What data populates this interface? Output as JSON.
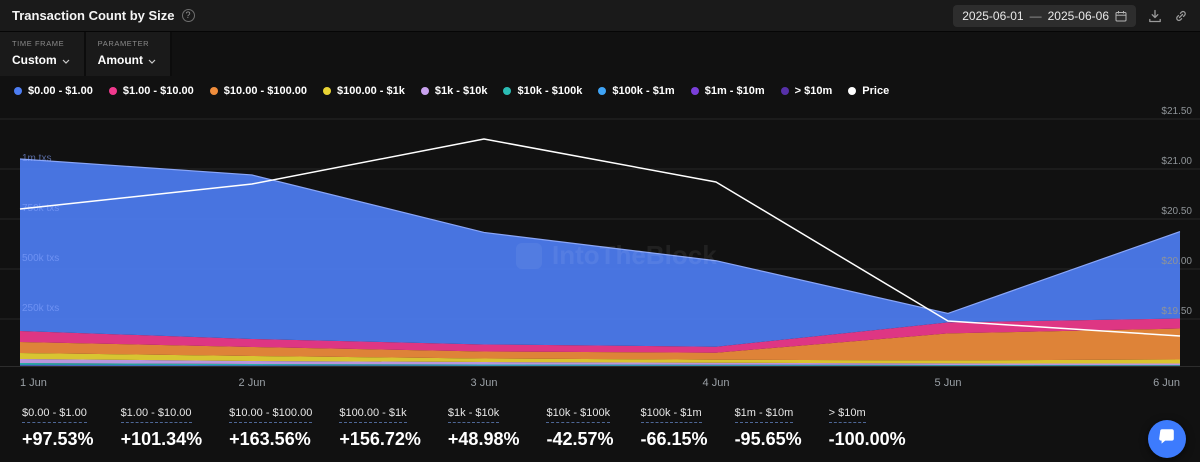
{
  "header": {
    "title": "Transaction Count by Size",
    "info_tooltip": "?",
    "date_range": {
      "start": "2025-06-01",
      "separator": "—",
      "end": "2025-06-06"
    }
  },
  "controls": {
    "time_frame": {
      "label": "TIME FRAME",
      "value": "Custom"
    },
    "parameter": {
      "label": "PARAMETER",
      "value": "Amount"
    }
  },
  "legend": {
    "items": [
      {
        "label": "$0.00 - $1.00",
        "color": "#4d7df2"
      },
      {
        "label": "$1.00 - $10.00",
        "color": "#f0398d"
      },
      {
        "label": "$10.00 - $100.00",
        "color": "#f08d3c"
      },
      {
        "label": "$100.00 - $1k",
        "color": "#e9d434"
      },
      {
        "label": "$1k - $10k",
        "color": "#c9a2ef"
      },
      {
        "label": "$10k - $100k",
        "color": "#2bbcb4"
      },
      {
        "label": "$100k - $1m",
        "color": "#3fa4f6"
      },
      {
        "label": "$1m - $10m",
        "color": "#7a3fd9"
      },
      {
        "label": "> $10m",
        "color": "#5630a8"
      },
      {
        "label": "Price",
        "color": "#ffffff"
      }
    ]
  },
  "chart_data": {
    "type": "area",
    "stacked": true,
    "x": [
      "1 Jun",
      "2 Jun",
      "3 Jun",
      "4 Jun",
      "5 Jun",
      "6 Jun"
    ],
    "series": [
      {
        "name": "$0.00 - $1.00",
        "color": "#4d7df2",
        "values": [
          860000,
          820000,
          560000,
          430000,
          45000,
          435000
        ]
      },
      {
        "name": "$1.00 - $10.00",
        "color": "#f0398d",
        "values": [
          55000,
          40000,
          35000,
          30000,
          55000,
          50000
        ]
      },
      {
        "name": "$10.00 - $100.00",
        "color": "#f08d3c",
        "values": [
          55000,
          45000,
          35000,
          35000,
          135000,
          155000
        ]
      },
      {
        "name": "$100.00 - $1k",
        "color": "#e9d434",
        "values": [
          30000,
          25000,
          18000,
          15000,
          15000,
          20000
        ]
      },
      {
        "name": "$1k - $10k",
        "color": "#c9a2ef",
        "values": [
          20000,
          15000,
          12000,
          10000,
          8000,
          8000
        ]
      },
      {
        "name": "$10k - $100k",
        "color": "#2bbcb4",
        "values": [
          8000,
          6000,
          5000,
          4000,
          3000,
          3000
        ]
      },
      {
        "name": "$100k - $1m",
        "color": "#3fa4f6",
        "values": [
          4000,
          3000,
          2000,
          1800,
          1500,
          1200
        ]
      },
      {
        "name": "$1m - $10m",
        "color": "#7a3fd9",
        "values": [
          2000,
          1000,
          700,
          500,
          400,
          100
        ]
      },
      {
        "name": "> $10m",
        "color": "#5630a8",
        "values": [
          1000,
          200,
          100,
          100,
          100,
          0
        ]
      }
    ],
    "price": {
      "name": "Price",
      "color": "#ffffff",
      "values": [
        20.6,
        20.85,
        21.3,
        20.87,
        19.48,
        19.33
      ]
    },
    "left_axis": {
      "unit": "txs",
      "ticks": [
        {
          "label": "1m txs",
          "value": 1000000
        },
        {
          "label": "750k txs",
          "value": 750000
        },
        {
          "label": "500k txs",
          "value": 500000
        },
        {
          "label": "250k txs",
          "value": 250000
        }
      ]
    },
    "right_axis": {
      "unit": "$",
      "ticks": [
        {
          "label": "$21.50",
          "value": 21.5
        },
        {
          "label": "$21.00",
          "value": 21.0
        },
        {
          "label": "$20.50",
          "value": 20.5
        },
        {
          "label": "$20.00",
          "value": 20.0
        },
        {
          "label": "$19.50",
          "value": 19.5
        }
      ]
    },
    "watermark": "IntoTheBlock"
  },
  "stats": {
    "items": [
      {
        "label": "$0.00 - $1.00",
        "value": "+97.53%"
      },
      {
        "label": "$1.00 - $10.00",
        "value": "+101.34%"
      },
      {
        "label": "$10.00 - $100.00",
        "value": "+163.56%"
      },
      {
        "label": "$100.00 - $1k",
        "value": "+156.72%"
      },
      {
        "label": "$1k - $10k",
        "value": "+48.98%"
      },
      {
        "label": "$10k - $100k",
        "value": "-42.57%"
      },
      {
        "label": "$100k - $1m",
        "value": "-66.15%"
      },
      {
        "label": "$1m - $10m",
        "value": "-95.65%"
      },
      {
        "label": "> $10m",
        "value": "-100.00%"
      }
    ]
  }
}
